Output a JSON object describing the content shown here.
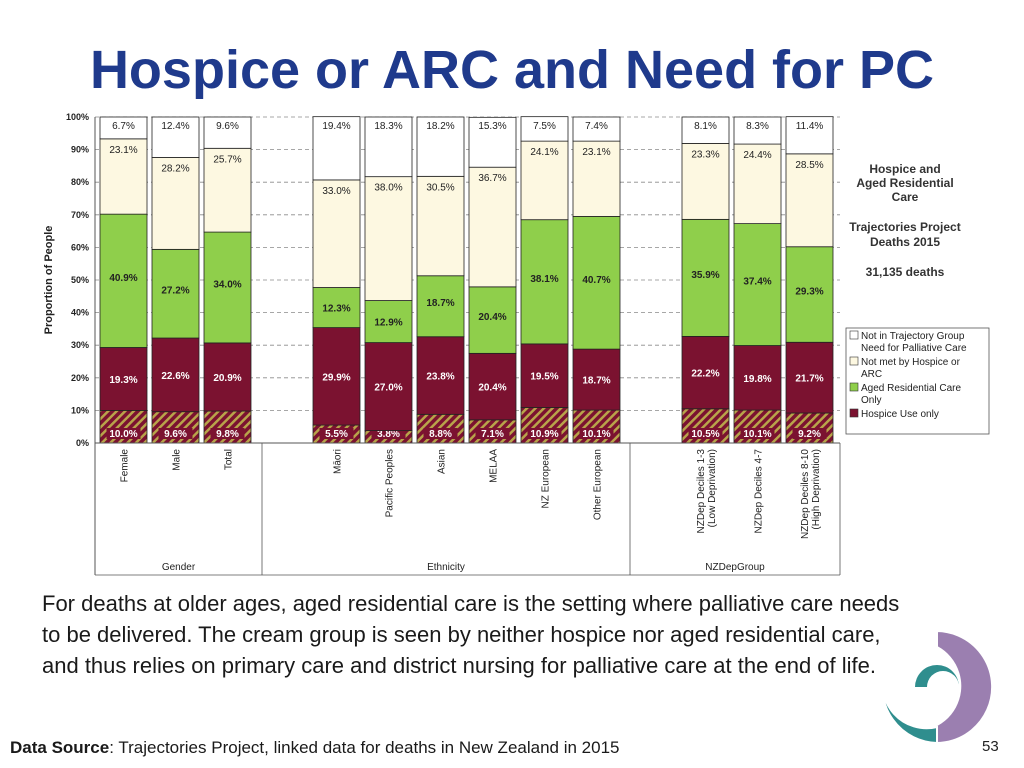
{
  "title": "Hospice or ARC and Need for PC",
  "body_text": "For deaths at older ages, aged residential care is the setting where palliative care needs to be delivered. The cream group is seen by neither hospice nor aged residential care, and thus relies on primary care and district nursing for palliative care at the end of life.",
  "source": {
    "label": "Data Source",
    "text": ": Trajectories Project, linked data for deaths in New Zealand in 2015"
  },
  "page_number": "53",
  "colors": {
    "title": "#1f3a8c",
    "hospice": "#7b1230",
    "arc": "#8fcf4b",
    "not_met": "#fdf8e1",
    "not_in_group": "#ffffff",
    "hatch_stripe": "#b8a44a",
    "logo_purple": "#9b7fb0",
    "logo_teal": "#2f8e8e"
  },
  "chart_data": {
    "type": "bar",
    "stacked": true,
    "ylabel": "Proportion of People",
    "ylim": [
      0,
      100
    ],
    "yticks": [
      "0%",
      "10%",
      "20%",
      "30%",
      "40%",
      "50%",
      "60%",
      "70%",
      "80%",
      "90%",
      "100%"
    ],
    "grid": true,
    "groups": [
      {
        "name": "Gender",
        "categories": [
          "Female",
          "Male",
          "Total"
        ]
      },
      {
        "name": "Ethnicity",
        "categories": [
          "Māori",
          "Pacific Peoples",
          "Asian",
          "MELAA",
          "NZ European",
          "Other European"
        ]
      },
      {
        "name": "NZDepGroup",
        "categories": [
          "NZDep Deciles 1-3 (Low Deprivation)",
          "NZDep Deciles 4-7",
          "NZDep Deciles 8-10 (High Deprivation)"
        ]
      }
    ],
    "categories": [
      "Female",
      "Male",
      "Total",
      "Māori",
      "Pacific Peoples",
      "Asian",
      "MELAA",
      "NZ European",
      "Other European",
      "NZDep Deciles 1-3 (Low Deprivation)",
      "NZDep Deciles 4-7",
      "NZDep Deciles 8-10 (High Deprivation)"
    ],
    "series": [
      {
        "name": "Hospice Use only",
        "values": [
          10.0,
          9.6,
          9.8,
          5.5,
          3.8,
          8.8,
          7.1,
          10.9,
          10.1,
          10.5,
          10.1,
          9.2
        ],
        "labels": [
          "10.0%",
          "9.6%",
          "9.8%",
          "5.5%",
          "3.8%",
          "8.8%",
          "7.1%",
          "10.9%",
          "10.1%",
          "10.5%",
          "10.1%",
          "9.2%"
        ]
      },
      {
        "name": "Hospice Use only",
        "values": [
          19.3,
          22.6,
          20.9,
          29.9,
          27.0,
          23.8,
          20.4,
          19.5,
          18.7,
          22.2,
          19.8,
          21.7
        ],
        "labels": [
          "19.3%",
          "22.6%",
          "20.9%",
          "29.9%",
          "27.0%",
          "23.8%",
          "20.4%",
          "19.5%",
          "18.7%",
          "22.2%",
          "19.8%",
          "21.7%"
        ]
      },
      {
        "name": "Aged Residential Care Only",
        "values": [
          40.9,
          27.2,
          34.0,
          12.3,
          12.9,
          18.7,
          20.4,
          38.1,
          40.7,
          35.9,
          37.4,
          29.3
        ],
        "labels": [
          "40.9%",
          "27.2%",
          "34.0%",
          "12.3%",
          "12.9%",
          "18.7%",
          "20.4%",
          "38.1%",
          "40.7%",
          "35.9%",
          "37.4%",
          "29.3%"
        ]
      },
      {
        "name": "Not met by Hospice or ARC",
        "values": [
          23.1,
          28.2,
          25.7,
          33.0,
          38.0,
          30.5,
          36.7,
          24.1,
          23.1,
          23.3,
          24.4,
          28.5
        ],
        "labels": [
          "23.1%",
          "28.2%",
          "25.7%",
          "33.0%",
          "38.0%",
          "30.5%",
          "36.7%",
          "24.1%",
          "23.1%",
          "23.3%",
          "24.4%",
          "28.5%"
        ]
      },
      {
        "name": "Not in Trajectory Group Need for Palliative Care",
        "values": [
          6.7,
          12.4,
          9.6,
          19.4,
          18.3,
          18.2,
          15.3,
          7.5,
          7.4,
          8.1,
          8.3,
          11.4
        ],
        "labels": [
          "6.7%",
          "12.4%",
          "9.6%",
          "19.4%",
          "18.3%",
          "18.2%",
          "15.3%",
          "7.5%",
          "7.4%",
          "8.1%",
          "8.3%",
          "11.4%"
        ]
      }
    ],
    "legend": {
      "placement": "right",
      "entries": [
        "Not in Trajectory Group Need for Palliative Care",
        "Not met by Hospice or ARC",
        "Aged Residential Care Only",
        "Hospice Use only"
      ]
    },
    "annotation": {
      "lines": [
        "Hospice and",
        "Aged Residential",
        "Care"
      ],
      "sub_lines": [
        "Trajectories Project",
        "Deaths 2015"
      ],
      "count": "31,135 deaths"
    }
  }
}
